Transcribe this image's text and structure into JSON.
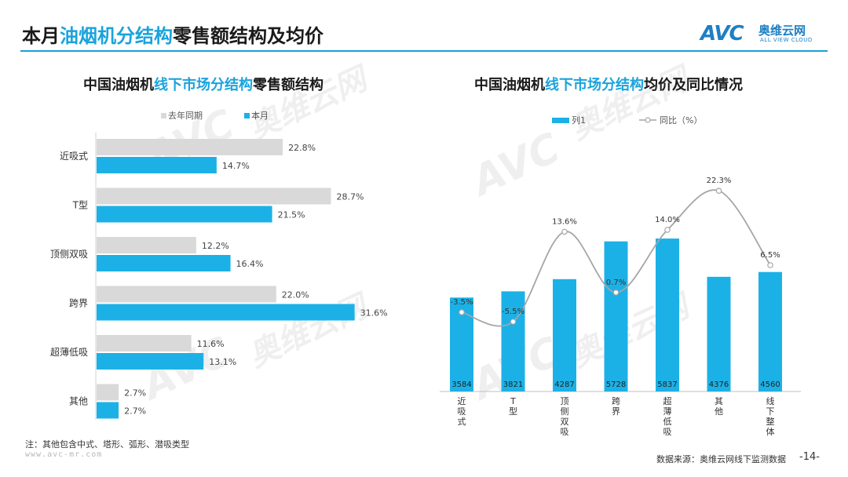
{
  "header": {
    "title_prefix": "本月",
    "title_highlight": "油烟机分结构",
    "title_suffix": "零售额结构及均价"
  },
  "logo": {
    "mark": "AVC",
    "cn": "奥维云网",
    "en": "ALL VIEW CLOUD"
  },
  "watermark": {
    "mark": "AVC",
    "cn": "奥维云网",
    "en": "ALL VIEW CLOUD"
  },
  "left_chart": {
    "title_prefix": "中国油烟机",
    "title_highlight": "线下市场分结构",
    "title_suffix": "零售额结构"
  },
  "right_chart": {
    "title_prefix": "中国油烟机",
    "title_highlight": "线下市场分结构",
    "title_suffix": "均价及同比情况"
  },
  "chart_data": [
    {
      "type": "bar",
      "orientation": "horizontal",
      "categories": [
        "近吸式",
        "T型",
        "顶侧双吸",
        "跨界",
        "超薄低吸",
        "其他"
      ],
      "series": [
        {
          "name": "去年同期",
          "color": "#d9d9d9",
          "values": [
            22.8,
            28.7,
            12.2,
            22.0,
            11.6,
            2.7
          ],
          "labels": [
            "22.8%",
            "28.7%",
            "12.2%",
            "22.0%",
            "11.6%",
            "2.7%"
          ]
        },
        {
          "name": "本月",
          "color": "#1cb1e6",
          "values": [
            14.7,
            21.5,
            16.4,
            31.6,
            13.1,
            2.7
          ],
          "labels": [
            "14.7%",
            "21.5%",
            "16.4%",
            "31.6%",
            "13.1%",
            "2.7%"
          ]
        }
      ],
      "legend_position": "top",
      "unit": "%"
    },
    {
      "type": "bar",
      "categories": [
        "近吸式",
        "T型",
        "顶侧双吸",
        "跨界",
        "超薄低吸",
        "其他",
        "线下整体"
      ],
      "series": [
        {
          "name": "列1",
          "kind": "bar",
          "color": "#1cb1e6",
          "values": [
            3584,
            3821,
            4287,
            5728,
            5837,
            4376,
            4560
          ]
        },
        {
          "name": "同比（%）",
          "kind": "line",
          "axis": "secondary",
          "color": "#a6a6a6",
          "values": [
            -3.5,
            -5.5,
            13.6,
            0.7,
            14.0,
            22.3,
            6.5
          ],
          "labels": [
            "-3.5%",
            "-5.5%",
            "13.6%",
            "0.7%",
            "14.0%",
            "22.3%",
            "6.5%"
          ]
        }
      ],
      "legend_position": "top"
    }
  ],
  "footer": {
    "note": "注：其他包含中式、塔形、弧形、潜吸类型",
    "site": "www.avc-mr.com",
    "source": "数据来源：奥维云网线下监测数据",
    "page": "-14-"
  }
}
